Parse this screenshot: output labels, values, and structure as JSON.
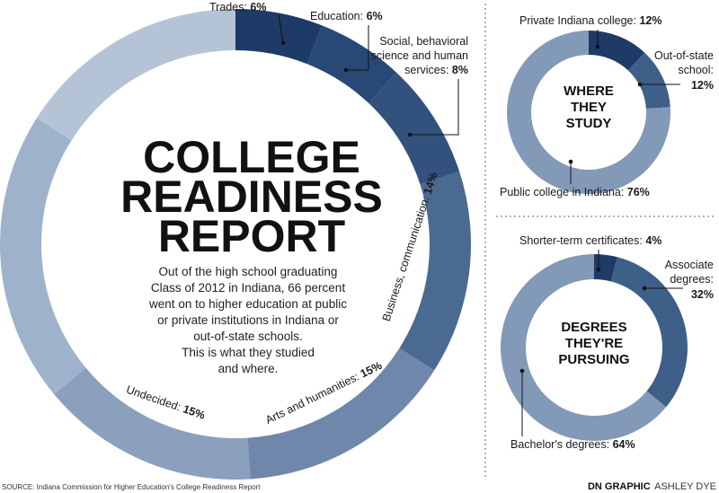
{
  "title_lines": [
    "COLLEGE",
    "READINESS",
    "REPORT"
  ],
  "intro_lines": [
    "Out of the high school graduating",
    "Class of 2012 in Indiana, 66 percent",
    "went on to higher education at public",
    "or private institutions in Indiana or",
    "out-of-state schools.",
    "This is what they studied",
    "and where."
  ],
  "source": "SOURCE: Indiana Commission for Higher Education's College Readiness Report",
  "credit": {
    "bold": "DN GRAPHIC",
    "name": "ASHLEY DYE"
  },
  "colors": {
    "dark": "#1e3a66",
    "mid": "#3e5f88",
    "light": "#8299b8",
    "pale": "#b4c3d6",
    "divider": "#555555"
  },
  "chart_data": [
    {
      "type": "pie",
      "title": "COLLEGE READINESS REPORT",
      "series": [
        {
          "label": "Trades",
          "value": 6,
          "display": "6%",
          "color": "#1e3a66"
        },
        {
          "label": "Education",
          "value": 6,
          "display": "6%",
          "color": "#284975"
        },
        {
          "label": "Social, behavioral science and human services",
          "value": 8,
          "display": "8%",
          "color": "#32527d"
        },
        {
          "label": "Business, communication",
          "value": 14,
          "display": "14%",
          "color": "#4b6a91"
        },
        {
          "label": "Arts and humanities",
          "value": 15,
          "display": "15%",
          "color": "#6e87aa"
        },
        {
          "label": "Undecided",
          "value": 15,
          "display": "15%",
          "color": "#8aa0bd"
        },
        {
          "label": "",
          "value": 20,
          "display": "",
          "color": "#9fb2cb"
        },
        {
          "label": "",
          "value": 16,
          "display": "",
          "color": "#b5c3d6"
        }
      ]
    },
    {
      "type": "pie",
      "title": "WHERE THEY STUDY",
      "series": [
        {
          "label": "Private Indiana college",
          "value": 12,
          "display": "12%",
          "color": "#1e3a66"
        },
        {
          "label": "Out-of-state school",
          "value": 12,
          "display": "12%",
          "color": "#3e5f88"
        },
        {
          "label": "Public college in Indiana",
          "value": 76,
          "display": "76%",
          "color": "#8299b8"
        }
      ]
    },
    {
      "type": "pie",
      "title": "DEGREES THEY'RE PURSUING",
      "series": [
        {
          "label": "Shorter-term certificates",
          "value": 4,
          "display": "4%",
          "color": "#1e3a66"
        },
        {
          "label": "Associate degrees",
          "value": 32,
          "display": "32%",
          "color": "#3e5f88"
        },
        {
          "label": "Bachelor's degrees",
          "value": 64,
          "display": "64%",
          "color": "#8299b8"
        }
      ]
    }
  ]
}
